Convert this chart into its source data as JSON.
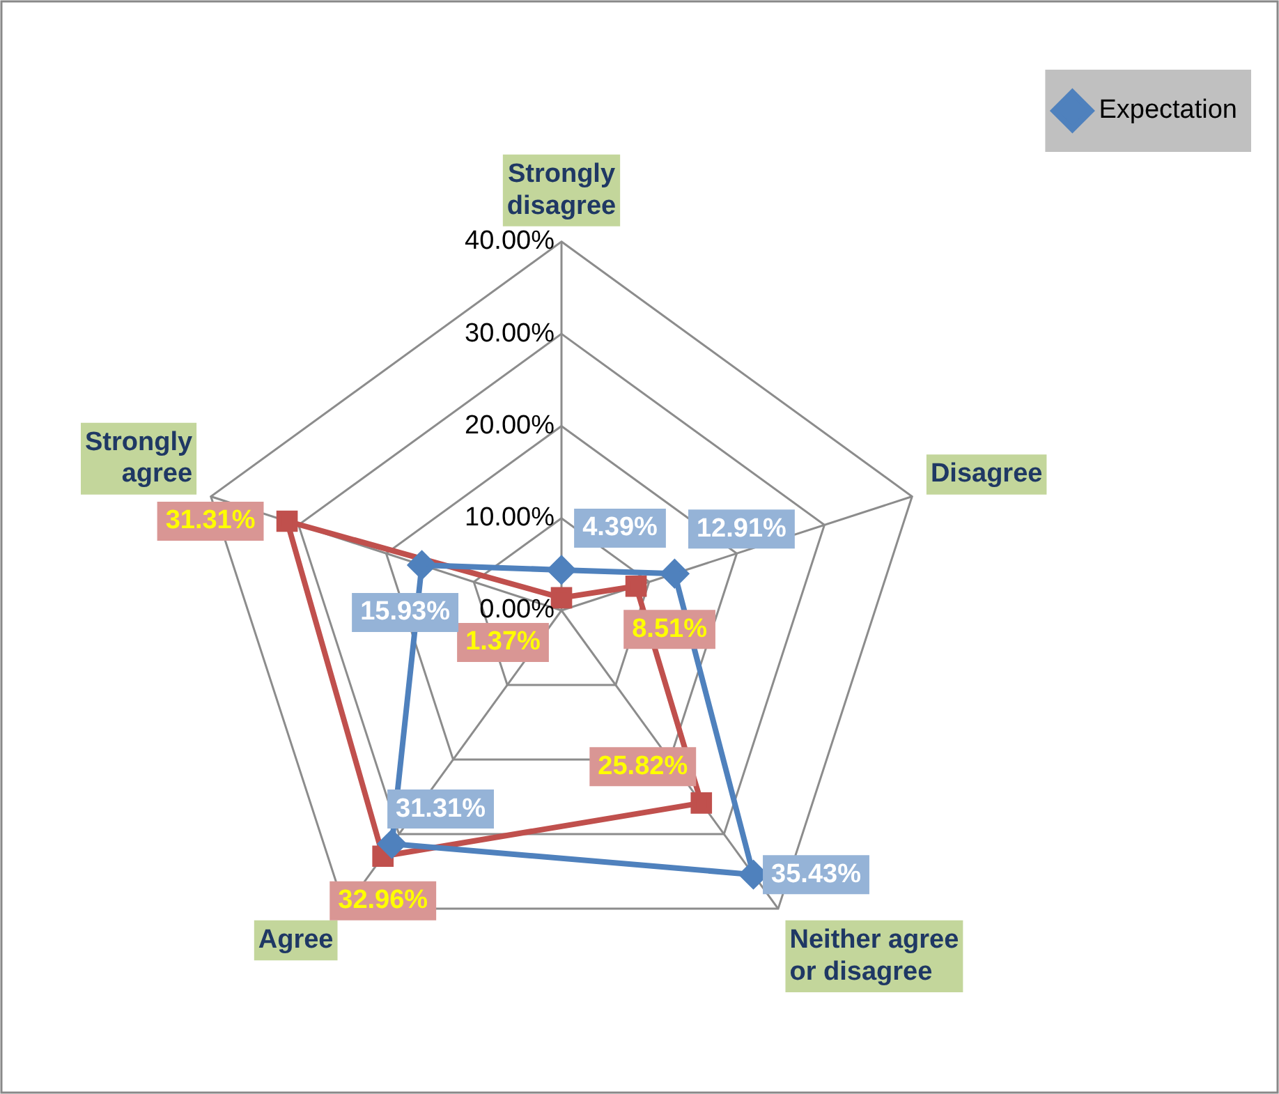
{
  "chart_data": {
    "type": "radar",
    "categories": [
      "Strongly disagree",
      "Disagree",
      "Neither agree or disagree",
      "Agree",
      "Strongly agree"
    ],
    "series": [
      {
        "name": "Expectation",
        "color": "#4f81bd",
        "marker": "diamond",
        "values": [
          4.39,
          12.91,
          35.43,
          31.31,
          15.93
        ],
        "value_labels": [
          "4.39%",
          "12.91%",
          "35.43%",
          "31.31%",
          "15.93%"
        ]
      },
      {
        "color": "#c0504d",
        "marker": "square",
        "values": [
          1.37,
          8.51,
          25.82,
          32.96,
          31.31
        ],
        "value_labels": [
          "1.37%",
          "8.51%",
          "25.82%",
          "32.96%",
          "31.31%"
        ]
      }
    ],
    "ylim": [
      0,
      40
    ],
    "yticks": [
      {
        "value": 0,
        "label": "0.00%"
      },
      {
        "value": 10,
        "label": "10.00%"
      },
      {
        "value": 20,
        "label": "20.00%"
      },
      {
        "value": 30,
        "label": "30.00%"
      },
      {
        "value": 40,
        "label": "40.00%"
      }
    ],
    "grid": true,
    "legend": "top right"
  }
}
